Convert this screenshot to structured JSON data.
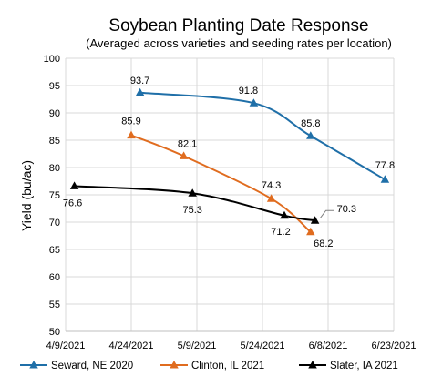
{
  "chart_data": {
    "type": "line",
    "title": "Soybean Planting Date Response",
    "subtitle": "(Averaged across varieties and seeding rates per location)",
    "xlabel": "",
    "ylabel": "Yield (bu/ac)",
    "ylim": [
      50,
      100
    ],
    "yticks": [
      50,
      55,
      60,
      65,
      70,
      75,
      80,
      85,
      90,
      95,
      100
    ],
    "xlim": [
      "2021-04-09",
      "2021-06-23"
    ],
    "xticks": [
      {
        "date": "2021-04-09",
        "label": "4/9/2021"
      },
      {
        "date": "2021-04-24",
        "label": "4/24/2021"
      },
      {
        "date": "2021-05-09",
        "label": "5/9/2021"
      },
      {
        "date": "2021-05-24",
        "label": "5/24/2021"
      },
      {
        "date": "2021-06-08",
        "label": "6/8/2021"
      },
      {
        "date": "2021-06-23",
        "label": "6/23/2021"
      }
    ],
    "grid": true,
    "legend_position": "bottom",
    "series": [
      {
        "name": "Seward, NE 2020",
        "color": "#1f6fa8",
        "marker": "triangle",
        "points": [
          {
            "x": "2021-04-26",
            "y": 93.7,
            "label": "93.7"
          },
          {
            "x": "2021-05-22",
            "y": 91.8,
            "label": "91.8"
          },
          {
            "x": "2021-06-04",
            "y": 85.8,
            "label": "85.8"
          },
          {
            "x": "2021-06-21",
            "y": 77.8,
            "label": "77.8"
          }
        ]
      },
      {
        "name": "Clinton, IL 2021",
        "color": "#e06c1f",
        "marker": "triangle",
        "points": [
          {
            "x": "2021-04-24",
            "y": 85.9,
            "label": "85.9"
          },
          {
            "x": "2021-05-06",
            "y": 82.1,
            "label": "82.1"
          },
          {
            "x": "2021-05-26",
            "y": 74.3,
            "label": "74.3"
          },
          {
            "x": "2021-06-04",
            "y": 68.2,
            "label": "68.2"
          }
        ]
      },
      {
        "name": "Slater, IA 2021",
        "color": "#000000",
        "marker": "triangle",
        "points": [
          {
            "x": "2021-04-11",
            "y": 76.6,
            "label": "76.6"
          },
          {
            "x": "2021-05-08",
            "y": 75.3,
            "label": "75.3"
          },
          {
            "x": "2021-05-29",
            "y": 71.2,
            "label": "71.2"
          },
          {
            "x": "2021-06-05",
            "y": 70.3,
            "label": "70.3"
          }
        ]
      }
    ]
  }
}
